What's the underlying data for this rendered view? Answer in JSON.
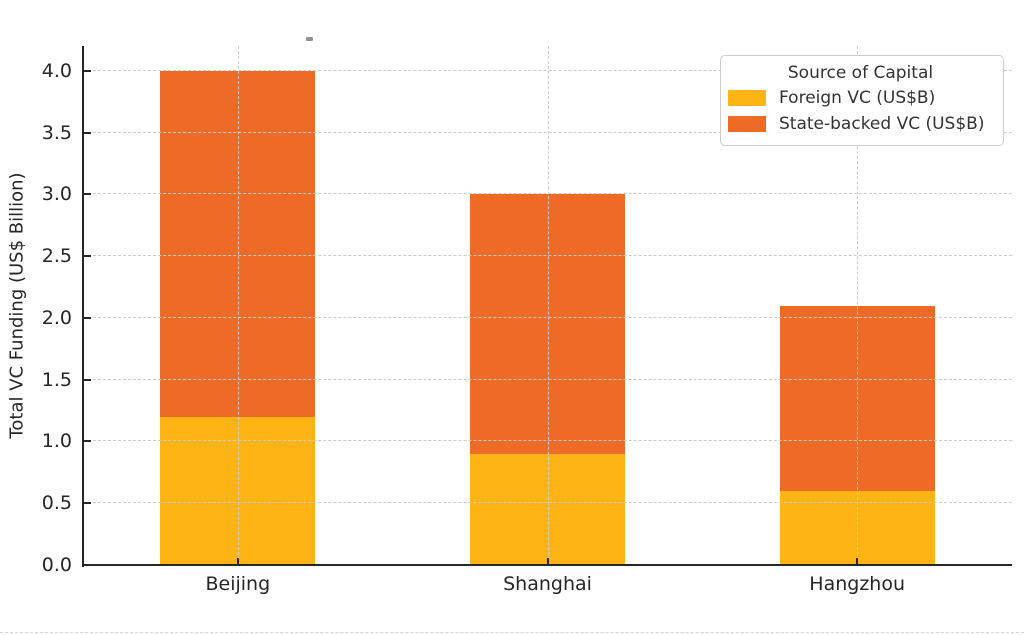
{
  "chart_data": {
    "type": "bar",
    "stacked": true,
    "categories": [
      "Beijing",
      "Shanghai",
      "Hangzhou"
    ],
    "series": [
      {
        "name": "Foreign VC (US$B)",
        "color": "#FDB414",
        "values": [
          1.2,
          0.9,
          0.6
        ]
      },
      {
        "name": "State-backed VC (US$B)",
        "color": "#ED6B26",
        "values": [
          2.8,
          2.1,
          1.5
        ]
      }
    ],
    "stacked_totals": [
      4.0,
      3.0,
      2.1
    ],
    "title": "",
    "xlabel": "",
    "ylabel": "Total VC Funding (US$ Billion)",
    "ylim": [
      0,
      4.2
    ],
    "yticks": [
      0.0,
      0.5,
      1.0,
      1.5,
      2.0,
      2.5,
      3.0,
      3.5,
      4.0
    ],
    "ytick_format_decimals": 1,
    "bar_width_fraction_of_slot": 0.5,
    "grid": "dashed-both-axes-above-bars",
    "grid_color": "#cbcbcb",
    "axis_color": "#262626",
    "background_color": "#ffffff",
    "legend": {
      "title": "Source of Capital",
      "position": "upper right",
      "entries": [
        "Foreign VC (US$B)",
        "State-backed VC (US$B)"
      ]
    }
  }
}
